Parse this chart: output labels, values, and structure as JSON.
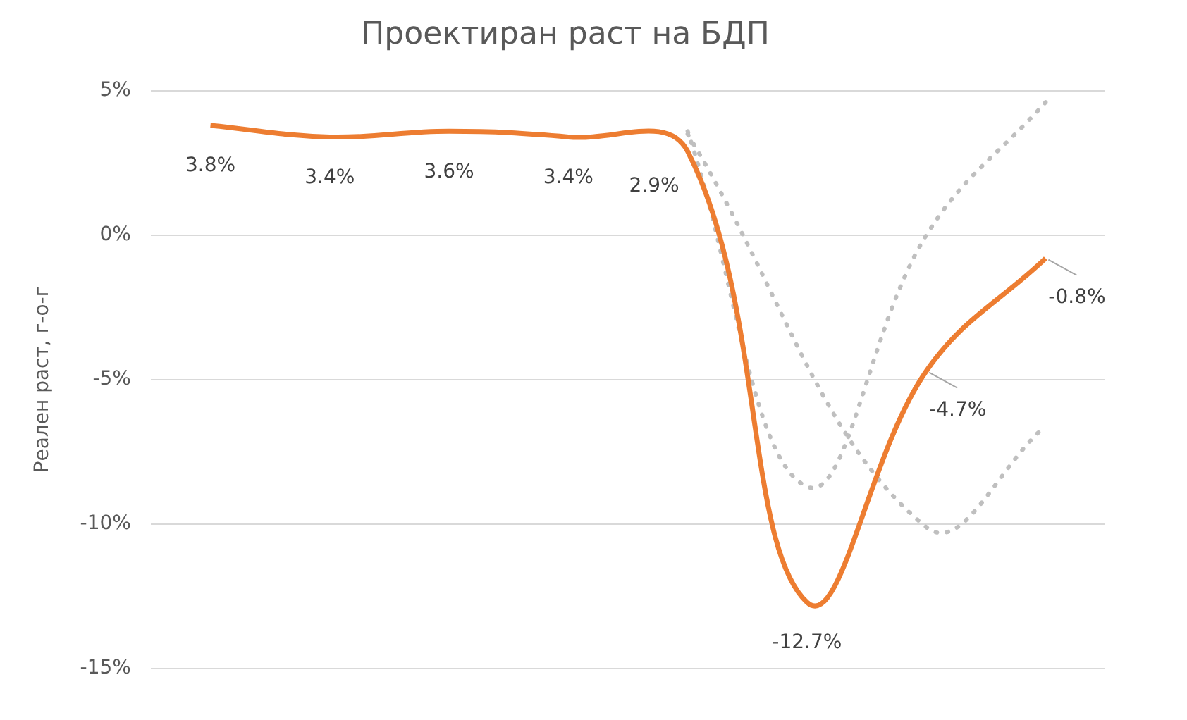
{
  "chart_data": {
    "type": "line",
    "title": "Проектиран раст на БДП",
    "ylabel": "Реален раст, г-о-г",
    "categories": [
      null,
      null,
      null,
      null,
      null,
      null,
      null,
      null
    ],
    "series": [
      {
        "color": "#ed7d31",
        "line_style": "solid",
        "values": [
          3.8,
          3.4,
          3.6,
          3.4,
          2.9,
          -12.7,
          -4.7,
          -0.8
        ],
        "value_labels": [
          "3.8%",
          "3.4%",
          "3.6%",
          "3.4%",
          "2.9%",
          "-12.7%",
          "-4.7%",
          "-0.8%"
        ]
      },
      {
        "color": "#bfbfbf",
        "line_style": "dotted",
        "values": [
          null,
          null,
          null,
          null,
          3.5,
          null,
          -10.1,
          -6.6
        ]
      },
      {
        "color": "#bfbfbf",
        "line_style": "dotted",
        "values": [
          null,
          null,
          null,
          null,
          3.6,
          -8.7,
          0,
          4.6
        ]
      }
    ],
    "ylim": [
      -15,
      5
    ],
    "yticks": [
      {
        "value": 5,
        "label": "5%"
      },
      {
        "value": 0,
        "label": "0%"
      },
      {
        "value": -5,
        "label": "-5%"
      },
      {
        "value": -10,
        "label": "-10%"
      },
      {
        "value": -15,
        "label": "-15%"
      }
    ],
    "grid": "y",
    "legend": false,
    "marker": "none"
  }
}
